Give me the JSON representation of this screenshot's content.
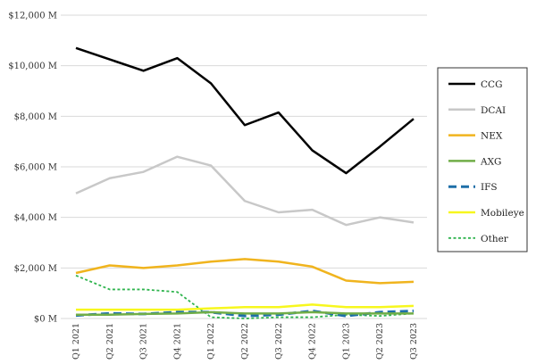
{
  "chart_data": {
    "type": "line",
    "categories": [
      "Q1 2021",
      "Q2 2021",
      "Q3 2021",
      "Q4 2021",
      "Q1 2022",
      "Q2 2022",
      "Q3 2022",
      "Q4 2022",
      "Q1 2023",
      "Q2 2023",
      "Q3 2023"
    ],
    "ylim": [
      0,
      12000
    ],
    "yticks": [
      0,
      2000,
      4000,
      6000,
      8000,
      10000,
      12000
    ],
    "ytick_labels": [
      "$0 M",
      "$2,000 M",
      "$4,000 M",
      "$6,000 M",
      "$8,000 M",
      "$10,000 M",
      "$12,000 M"
    ],
    "grid": "horizontal",
    "legend_position": "right",
    "series": [
      {
        "name": "CCG",
        "color": "#000000",
        "dash": "solid",
        "values": [
          10700,
          10250,
          9800,
          10300,
          9300,
          7650,
          8150,
          6650,
          5750,
          6800,
          7900
        ]
      },
      {
        "name": "DCAI",
        "color": "#c8c8c8",
        "dash": "solid",
        "values": [
          4950,
          5550,
          5800,
          6400,
          6050,
          4650,
          4200,
          4300,
          3700,
          4000,
          3800
        ]
      },
      {
        "name": "NEX",
        "color": "#f0b41e",
        "dash": "solid",
        "values": [
          1800,
          2100,
          2000,
          2100,
          2250,
          2350,
          2250,
          2050,
          1500,
          1400,
          1450
        ]
      },
      {
        "name": "AXG",
        "color": "#70ad47",
        "dash": "solid",
        "values": [
          150,
          150,
          180,
          200,
          250,
          200,
          200,
          250,
          200,
          200,
          200
        ]
      },
      {
        "name": "IFS",
        "color": "#1e6fa8",
        "dash": "longdash",
        "values": [
          120,
          200,
          180,
          250,
          250,
          100,
          150,
          300,
          100,
          250,
          300
        ]
      },
      {
        "name": "Mobileye",
        "color": "#f7f71e",
        "dash": "solid",
        "values": [
          350,
          350,
          350,
          350,
          400,
          450,
          450,
          550,
          450,
          450,
          500
        ]
      },
      {
        "name": "Other",
        "color": "#2fb44e",
        "dash": "dotted",
        "values": [
          1700,
          1150,
          1150,
          1050,
          50,
          0,
          50,
          50,
          150,
          100,
          200
        ]
      }
    ]
  }
}
